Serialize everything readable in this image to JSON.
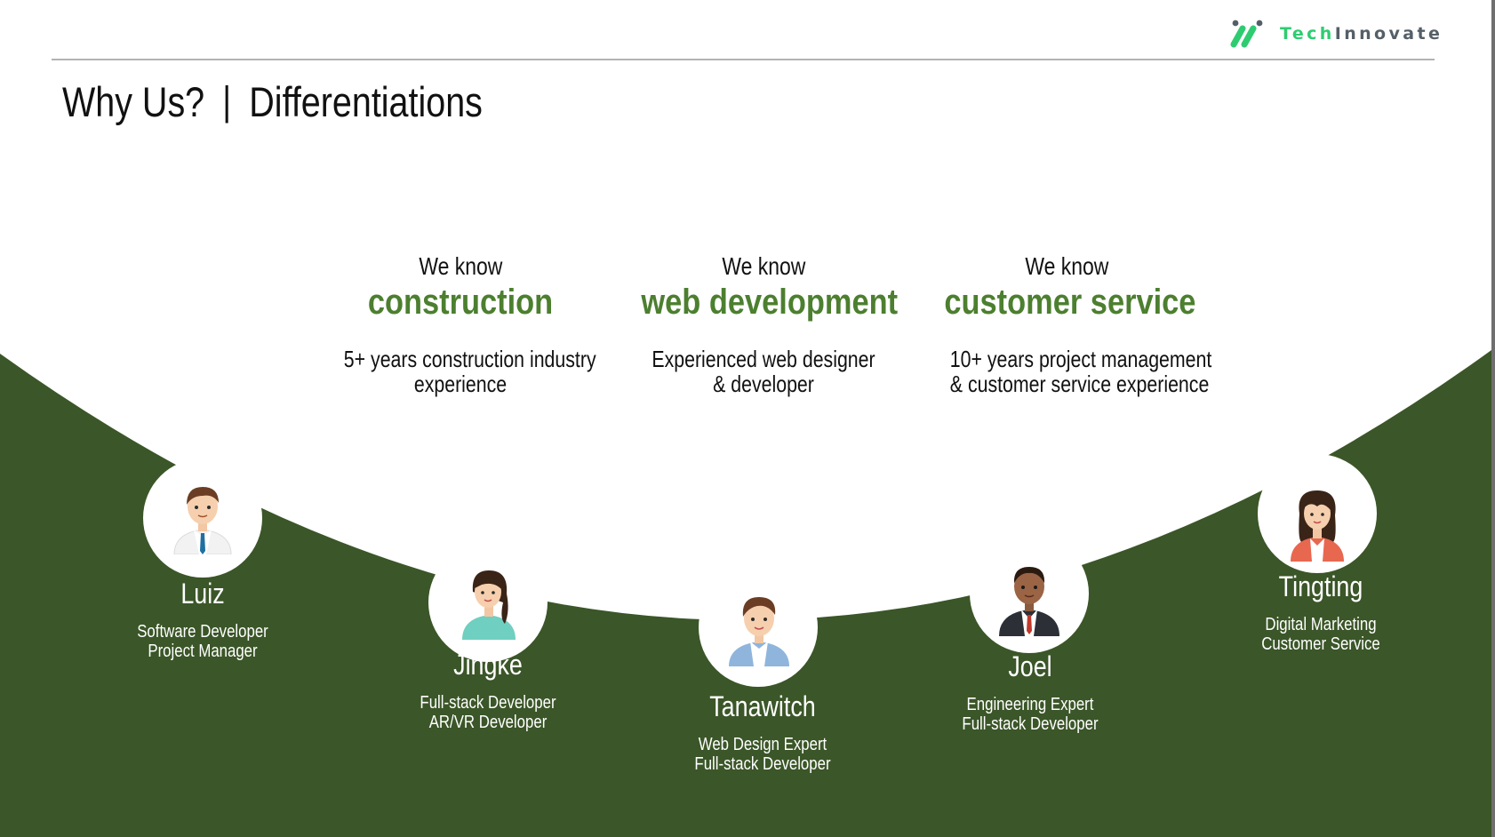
{
  "brand": {
    "name_part1": "Tech",
    "name_part2": "Innovate",
    "colors": {
      "accent": "#2ecc71",
      "green": "#4c7f2f",
      "dark_green": "#3b5628",
      "text": "#111111"
    }
  },
  "header": {
    "title_main": "Why Us?",
    "separator": "|",
    "title_sub": "Differentiations"
  },
  "knowledge": [
    {
      "prefix": "We know",
      "topic": "construction",
      "desc_line1": "5+ years construction industry",
      "desc_line2": "experience"
    },
    {
      "prefix": "We know",
      "topic": "web development",
      "desc_line1": "Experienced web designer",
      "desc_line2": "& developer"
    },
    {
      "prefix": "We know",
      "topic": "customer service",
      "desc_line1": "10+ years project management",
      "desc_line2": "& customer service experience"
    }
  ],
  "team": [
    {
      "name": "Luiz",
      "role1": "Software Developer",
      "role2": "Project Manager",
      "avatar": "man-white-shirt-icon"
    },
    {
      "name": "Jingke",
      "role1": "Full-stack Developer",
      "role2": "AR/VR Developer",
      "avatar": "woman-teal-top-icon"
    },
    {
      "name": "Tanawitch",
      "role1": "Web Design Expert",
      "role2": "Full-stack Developer",
      "avatar": "man-blue-jacket-icon"
    },
    {
      "name": "Joel",
      "role1": "Engineering Expert",
      "role2": "Full-stack Developer",
      "avatar": "man-suit-icon"
    },
    {
      "name": "Tingting",
      "role1": "Digital Marketing",
      "role2": "Customer Service",
      "avatar": "woman-red-jacket-icon"
    }
  ]
}
